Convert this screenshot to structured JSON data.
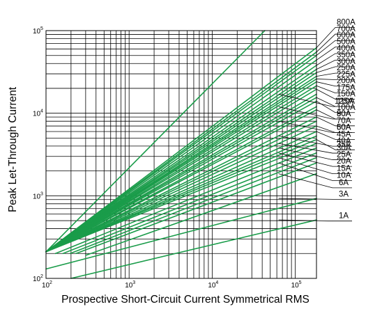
{
  "chart_data": {
    "type": "line",
    "xlabel": "Prospective Short-Circuit Current Symmetrical RMS",
    "ylabel": "Peak Let-Through Current",
    "x_scale": "log",
    "y_scale": "log",
    "xlim": [
      100,
      180000
    ],
    "ylim": [
      100,
      100000
    ],
    "x_ticks": [
      {
        "v": 100,
        "base": "10",
        "exp": "2"
      },
      {
        "v": 1000,
        "base": "10",
        "exp": "3"
      },
      {
        "v": 10000,
        "base": "10",
        "exp": "4"
      },
      {
        "v": 100000,
        "base": "10",
        "exp": "5"
      }
    ],
    "y_ticks": [
      {
        "v": 100,
        "base": "10",
        "exp": "2"
      },
      {
        "v": 1000,
        "base": "10",
        "exp": "3"
      },
      {
        "v": 10000,
        "base": "10",
        "exp": "4"
      },
      {
        "v": 100000,
        "base": "10",
        "exp": "5"
      }
    ],
    "grid": true,
    "line_color": "#1a9c4a",
    "reference_line": {
      "name": "",
      "x": [
        100,
        43000
      ],
      "y": [
        210,
        100000
      ]
    },
    "series": [
      {
        "name": "800A",
        "x": [
          100,
          180000
        ],
        "y": [
          210,
          62000
        ]
      },
      {
        "name": "700A",
        "x": [
          100,
          180000
        ],
        "y": [
          210,
          55000
        ]
      },
      {
        "name": "600A",
        "x": [
          100,
          180000
        ],
        "y": [
          210,
          50000
        ]
      },
      {
        "name": "500A",
        "x": [
          100,
          180000
        ],
        "y": [
          210,
          44000
        ]
      },
      {
        "name": "400A",
        "x": [
          100,
          180000
        ],
        "y": [
          210,
          38000
        ]
      },
      {
        "name": "350A",
        "x": [
          100,
          180000
        ],
        "y": [
          210,
          34000
        ]
      },
      {
        "name": "300A",
        "x": [
          100,
          180000
        ],
        "y": [
          210,
          31000
        ]
      },
      {
        "name": "250A",
        "x": [
          100,
          180000
        ],
        "y": [
          210,
          28000
        ]
      },
      {
        "name": "225A",
        "x": [
          100,
          180000
        ],
        "y": [
          210,
          26000
        ]
      },
      {
        "name": "200A",
        "x": [
          100,
          180000
        ],
        "y": [
          210,
          24000
        ]
      },
      {
        "name": "175A",
        "x": [
          100,
          180000
        ],
        "y": [
          210,
          21500
        ]
      },
      {
        "name": "150A",
        "x": [
          100,
          180000
        ],
        "y": [
          210,
          19500
        ]
      },
      {
        "name": "125A",
        "x": [
          100,
          180000
        ],
        "y": [
          210,
          17000
        ]
      },
      {
        "name": "110A",
        "x": [
          100,
          180000
        ],
        "y": [
          210,
          15500
        ]
      },
      {
        "name": "100A",
        "x": [
          100,
          180000
        ],
        "y": [
          210,
          14000
        ]
      },
      {
        "name": "90A",
        "x": [
          100,
          180000
        ],
        "y": [
          210,
          12000
        ]
      },
      {
        "name": "80A",
        "x": [
          100,
          180000
        ],
        "y": [
          210,
          11000
        ]
      },
      {
        "name": "70A",
        "x": [
          100,
          180000
        ],
        "y": [
          210,
          9000
        ]
      },
      {
        "name": "60A",
        "x": [
          100,
          180000
        ],
        "y": [
          210,
          8000
        ]
      },
      {
        "name": "50A",
        "x": [
          100,
          180000
        ],
        "y": [
          210,
          7000
        ]
      },
      {
        "name": "45A",
        "x": [
          100,
          180000
        ],
        "y": [
          210,
          6000
        ]
      },
      {
        "name": "40A",
        "x": [
          100,
          180000
        ],
        "y": [
          210,
          5300
        ]
      },
      {
        "name": "35A",
        "x": [
          100,
          180000
        ],
        "y": [
          210,
          4800
        ]
      },
      {
        "name": "30A",
        "x": [
          100,
          180000
        ],
        "y": [
          210,
          4300
        ]
      },
      {
        "name": "25A",
        "x": [
          130,
          180000
        ],
        "y": [
          200,
          3800
        ]
      },
      {
        "name": "20A",
        "x": [
          160,
          180000
        ],
        "y": [
          200,
          3300
        ]
      },
      {
        "name": "15A",
        "x": [
          195,
          180000
        ],
        "y": [
          200,
          2900
        ]
      },
      {
        "name": "10A",
        "x": [
          230,
          180000
        ],
        "y": [
          200,
          2500
        ]
      },
      {
        "name": "6A",
        "x": [
          300,
          180000
        ],
        "y": [
          190,
          1850
        ]
      },
      {
        "name": "3A",
        "x": [
          100,
          180000
        ],
        "y": [
          130,
          930
        ]
      },
      {
        "name": "1A",
        "x": [
          200,
          180000
        ],
        "y": [
          100,
          510
        ]
      }
    ],
    "labels": [
      {
        "text": "800A",
        "lx": 180000,
        "ly": 62000,
        "ty": 118000
      },
      {
        "text": "700A",
        "lx": 180000,
        "ly": 55000,
        "ty": 98000
      },
      {
        "text": "600A",
        "lx": 180000,
        "ly": 50000,
        "ty": 82000
      },
      {
        "text": "500A",
        "lx": 180000,
        "ly": 44000,
        "ty": 68500
      },
      {
        "text": "400A",
        "lx": 180000,
        "ly": 38000,
        "ty": 57000
      },
      {
        "text": "350A",
        "lx": 180000,
        "ly": 34000,
        "ty": 47500
      },
      {
        "text": "300A",
        "lx": 180000,
        "ly": 31000,
        "ty": 39500
      },
      {
        "text": "250A",
        "lx": 180000,
        "ly": 28000,
        "ty": 33000
      },
      {
        "text": "225A",
        "lx": 180000,
        "ly": 26000,
        "ty": 27500
      },
      {
        "text": "200A",
        "lx": 180000,
        "ly": 24000,
        "ty": 23000
      },
      {
        "text": "175A",
        "lx": 180000,
        "ly": 21500,
        "ty": 19000
      },
      {
        "text": "150A",
        "lx": 180000,
        "ly": 19500,
        "ty": 16000
      },
      {
        "text": "125A",
        "lx": 63000,
        "ly": 17000,
        "ty": 13000
      },
      {
        "text": "110A",
        "lx": 180000,
        "ly": 15500,
        "ty": 13000
      },
      {
        "text": "100A",
        "lx": 180000,
        "ly": 14000,
        "ty": 11000
      },
      {
        "text": "90A",
        "lx": 63000,
        "ly": 12000,
        "ty": 9200
      },
      {
        "text": "80A",
        "lx": 180000,
        "ly": 11000,
        "ty": 9200
      },
      {
        "text": "70A",
        "lx": 180000,
        "ly": 9000,
        "ty": 7600
      },
      {
        "text": "60A",
        "lx": 63000,
        "ly": 8000,
        "ty": 6300
      },
      {
        "text": "50A",
        "lx": 180000,
        "ly": 7000,
        "ty": 6300
      },
      {
        "text": "45A",
        "lx": 180000,
        "ly": 6000,
        "ty": 5200
      },
      {
        "text": "40A",
        "lx": 63000,
        "ly": 5300,
        "ty": 4300
      },
      {
        "text": "35A",
        "lx": 180000,
        "ly": 4800,
        "ty": 3900
      },
      {
        "text": "30A",
        "lx": 63000,
        "ly": 4300,
        "ty": 3550
      },
      {
        "text": "25A",
        "lx": 63000,
        "ly": 3800,
        "ty": 2950
      },
      {
        "text": "20A",
        "lx": 63000,
        "ly": 3300,
        "ty": 2450
      },
      {
        "text": "15A",
        "lx": 63000,
        "ly": 2900,
        "ty": 2000
      },
      {
        "text": "10A",
        "lx": 63000,
        "ly": 2500,
        "ty": 1650
      },
      {
        "text": "6A",
        "lx": 63000,
        "ly": 1850,
        "ty": 1350
      },
      {
        "text": "3A",
        "lx": 63000,
        "ly": 930,
        "ty": 980
      },
      {
        "text": "1A",
        "lx": 63000,
        "ly": 510,
        "ty": 535
      }
    ]
  }
}
